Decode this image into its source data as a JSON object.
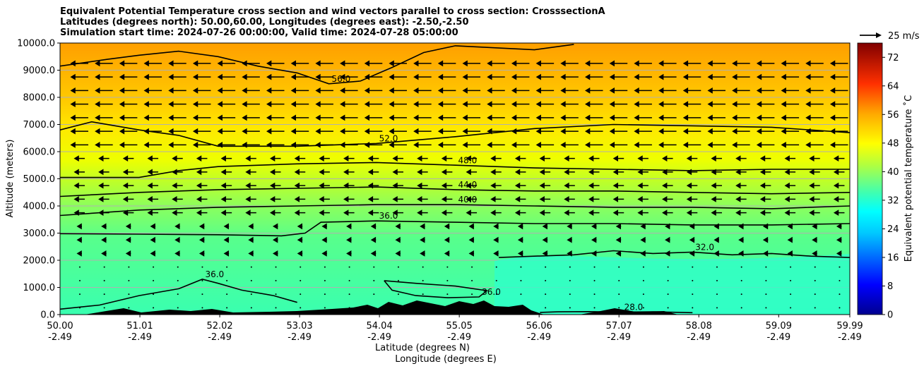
{
  "chart_data": {
    "type": "heatmap",
    "title_lines": [
      "Equivalent Potential Temperature cross section and wind vectors parallel to cross section: CrosssectionA",
      "Latitudes (degrees north): 50.00,60.00, Longitudes (degrees east): -2.50,-2.50",
      "Simulation start time: 2024-07-26 00:00:00, Valid time: 2024-07-28 05:00:00"
    ],
    "ylabel": "Altitude (meters)",
    "xlabel": "Latitude (degrees N)",
    "xlabel2": "Longitude (degrees E)",
    "ylim": [
      0,
      10000
    ],
    "xlim": [
      50.0,
      59.99
    ],
    "y_ticks": [
      0,
      1000,
      2000,
      3000,
      4000,
      5000,
      6000,
      7000,
      8000,
      9000,
      10000
    ],
    "y_tick_labels": [
      "0.0",
      "1000.0",
      "2000.0",
      "3000.0",
      "4000.0",
      "5000.0",
      "6000.0",
      "7000.0",
      "8000.0",
      "9000.0",
      "10000.0"
    ],
    "x_ticks": [
      50.0,
      51.01,
      52.02,
      53.03,
      54.04,
      55.05,
      56.06,
      57.07,
      58.08,
      59.09,
      59.99
    ],
    "x_tick_labels_lat": [
      "50.00",
      "51.01",
      "52.02",
      "53.03",
      "54.04",
      "55.05",
      "56.06",
      "57.07",
      "58.08",
      "59.09",
      "59.99"
    ],
    "x_tick_labels_lon": [
      "-2.49",
      "-2.49",
      "-2.49",
      "-2.49",
      "-2.49",
      "-2.49",
      "-2.49",
      "-2.49",
      "-2.49",
      "-2.49",
      "-2.49"
    ],
    "colorbar": {
      "label": "Equivalent potential temperature ˚C",
      "min": 0,
      "max": 76,
      "ticks": [
        0,
        8,
        16,
        24,
        32,
        40,
        48,
        56,
        64,
        72
      ]
    },
    "quiver_key": "25 m/s",
    "contours": [
      {
        "level": 28,
        "label": "28.0",
        "points": [
          [
            56.07,
            80
          ],
          [
            56.3,
            100
          ],
          [
            56.7,
            110
          ],
          [
            57.1,
            90
          ],
          [
            57.5,
            100
          ],
          [
            58.0,
            70
          ]
        ]
      },
      {
        "level": 32,
        "label": "32.0",
        "points": [
          [
            55.55,
            2100
          ],
          [
            56.0,
            2150
          ],
          [
            56.5,
            2200
          ],
          [
            57.0,
            2350
          ],
          [
            57.5,
            2250
          ],
          [
            58.0,
            2300
          ],
          [
            58.5,
            2200
          ],
          [
            59.0,
            2250
          ],
          [
            59.5,
            2150
          ],
          [
            59.99,
            2100
          ]
        ]
      },
      {
        "level": 36,
        "label": "36.0",
        "points": [
          [
            50.0,
            2980
          ],
          [
            51.0,
            2960
          ],
          [
            52.0,
            2940
          ],
          [
            52.8,
            2900
          ],
          [
            53.1,
            3000
          ],
          [
            53.3,
            3400
          ],
          [
            54.0,
            3450
          ],
          [
            55.0,
            3400
          ],
          [
            56.0,
            3350
          ],
          [
            57.0,
            3350
          ],
          [
            58.0,
            3300
          ],
          [
            59.0,
            3300
          ],
          [
            59.99,
            3350
          ]
        ]
      },
      {
        "level": 36,
        "label": "36.0",
        "points": [
          [
            54.1,
            1250
          ],
          [
            54.5,
            1150
          ],
          [
            55.0,
            1050
          ],
          [
            55.4,
            880
          ],
          [
            55.3,
            650
          ],
          [
            54.9,
            620
          ],
          [
            54.5,
            700
          ],
          [
            54.2,
            900
          ],
          [
            54.1,
            1250
          ]
        ]
      },
      {
        "level": 36,
        "label": "36.0",
        "points": [
          [
            50.0,
            200
          ],
          [
            50.5,
            350
          ],
          [
            51.0,
            700
          ],
          [
            51.5,
            950
          ],
          [
            51.8,
            1300
          ],
          [
            52.0,
            1150
          ],
          [
            52.3,
            900
          ],
          [
            52.7,
            700
          ],
          [
            53.0,
            450
          ]
        ]
      },
      {
        "level": 40,
        "label": "40.0",
        "points": [
          [
            50.0,
            3650
          ],
          [
            51.0,
            3850
          ],
          [
            52.0,
            3950
          ],
          [
            53.0,
            4000
          ],
          [
            54.0,
            4050
          ],
          [
            55.0,
            4050
          ],
          [
            56.0,
            4000
          ],
          [
            57.0,
            3950
          ],
          [
            58.0,
            3950
          ],
          [
            59.0,
            3900
          ],
          [
            59.99,
            4000
          ]
        ]
      },
      {
        "level": 44,
        "label": "44.0",
        "points": [
          [
            50.0,
            4350
          ],
          [
            51.0,
            4500
          ],
          [
            52.0,
            4600
          ],
          [
            53.0,
            4650
          ],
          [
            54.0,
            4700
          ],
          [
            55.0,
            4600
          ],
          [
            56.0,
            4550
          ],
          [
            57.0,
            4550
          ],
          [
            58.0,
            4500
          ],
          [
            59.0,
            4450
          ],
          [
            59.99,
            4500
          ]
        ]
      },
      {
        "level": 48,
        "label": "48.0",
        "points": [
          [
            50.0,
            5050
          ],
          [
            51.0,
            5050
          ],
          [
            51.5,
            5300
          ],
          [
            52.0,
            5450
          ],
          [
            53.0,
            5550
          ],
          [
            54.0,
            5600
          ],
          [
            55.0,
            5500
          ],
          [
            56.0,
            5400
          ],
          [
            57.0,
            5350
          ],
          [
            58.0,
            5300
          ],
          [
            59.0,
            5350
          ],
          [
            59.99,
            5350
          ]
        ]
      },
      {
        "level": 52,
        "label": "52.0",
        "points": [
          [
            50.0,
            6800
          ],
          [
            50.4,
            7100
          ],
          [
            51.0,
            6800
          ],
          [
            51.5,
            6600
          ],
          [
            52.0,
            6200
          ],
          [
            53.0,
            6200
          ],
          [
            54.0,
            6300
          ],
          [
            55.0,
            6550
          ],
          [
            56.0,
            6850
          ],
          [
            57.0,
            7000
          ],
          [
            58.0,
            6950
          ],
          [
            59.0,
            6900
          ],
          [
            59.99,
            6700
          ]
        ]
      },
      {
        "level": 56,
        "label": "56.0",
        "points": [
          [
            50.0,
            9150
          ],
          [
            50.6,
            9400
          ],
          [
            51.0,
            9550
          ],
          [
            51.5,
            9700
          ],
          [
            52.0,
            9500
          ],
          [
            52.5,
            9150
          ],
          [
            53.0,
            8900
          ],
          [
            53.4,
            8500
          ],
          [
            53.8,
            8600
          ],
          [
            54.2,
            9100
          ],
          [
            54.6,
            9650
          ],
          [
            55.0,
            9900
          ],
          [
            56.0,
            9750
          ],
          [
            56.5,
            9950
          ]
        ]
      }
    ]
  }
}
